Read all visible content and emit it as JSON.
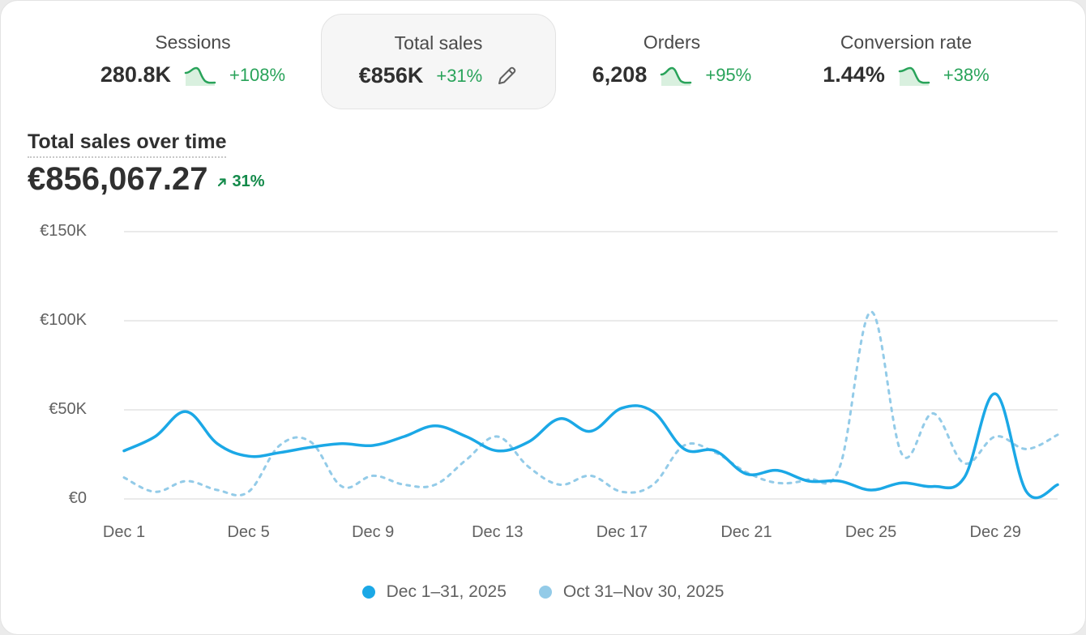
{
  "metrics": [
    {
      "label": "Sessions",
      "value": "280.8K",
      "change": "+108%",
      "sparkline": true,
      "active": false
    },
    {
      "label": "Total sales",
      "value": "€856K",
      "change": "+31%",
      "sparkline": false,
      "active": true
    },
    {
      "label": "Orders",
      "value": "6,208",
      "change": "+95%",
      "sparkline": true,
      "active": false
    },
    {
      "label": "Conversion rate",
      "value": "1.44%",
      "change": "+38%",
      "sparkline": true,
      "active": false
    }
  ],
  "icons": {
    "edit": "pencil-icon",
    "trend": "arrow-up-right-icon",
    "sparkline": "sparkline-icon"
  },
  "colors": {
    "positive": "#29a35a",
    "current": "#1ba8e6",
    "previous": "#93cbe8",
    "grid": "#e3e3e3"
  },
  "chart_data": {
    "type": "line",
    "title": "Total sales over time",
    "total": "€856,067.27",
    "total_change": "31%",
    "ylim": [
      0,
      150000
    ],
    "y_ticks": [
      {
        "value": 0,
        "label": "€0"
      },
      {
        "value": 50000,
        "label": "€50K"
      },
      {
        "value": 100000,
        "label": "€100K"
      },
      {
        "value": 150000,
        "label": "€150K"
      }
    ],
    "x": [
      1,
      2,
      3,
      4,
      5,
      6,
      7,
      8,
      9,
      10,
      11,
      12,
      13,
      14,
      15,
      16,
      17,
      18,
      19,
      20,
      21,
      22,
      23,
      24,
      25,
      26,
      27,
      28,
      29,
      30,
      31
    ],
    "x_ticks": [
      {
        "day": 1,
        "label": "Dec 1"
      },
      {
        "day": 5,
        "label": "Dec 5"
      },
      {
        "day": 9,
        "label": "Dec 9"
      },
      {
        "day": 13,
        "label": "Dec 13"
      },
      {
        "day": 17,
        "label": "Dec 17"
      },
      {
        "day": 21,
        "label": "Dec 21"
      },
      {
        "day": 25,
        "label": "Dec 25"
      },
      {
        "day": 29,
        "label": "Dec 29"
      }
    ],
    "grid": true,
    "legend_position": "bottom",
    "series": [
      {
        "name": "Dec 1–31, 2025",
        "style": "solid",
        "color": "#1ba8e6",
        "values": [
          27000,
          35000,
          49000,
          31000,
          24000,
          26000,
          29000,
          31000,
          30000,
          35000,
          41000,
          35000,
          27000,
          32000,
          45000,
          38000,
          51000,
          49000,
          28000,
          27000,
          14000,
          16000,
          10000,
          10000,
          5000,
          9000,
          7000,
          12000,
          59000,
          4000,
          8000
        ]
      },
      {
        "name": "Oct 31–Nov 30, 2025",
        "style": "dashed",
        "color": "#93cbe8",
        "values": [
          12000,
          4000,
          10000,
          5000,
          4000,
          30000,
          32000,
          7000,
          13000,
          8000,
          8000,
          22000,
          35000,
          18000,
          8000,
          13000,
          4000,
          8000,
          30000,
          26000,
          15000,
          9000,
          11000,
          18000,
          105000,
          25000,
          48000,
          20000,
          35000,
          28000,
          36000
        ]
      }
    ]
  }
}
